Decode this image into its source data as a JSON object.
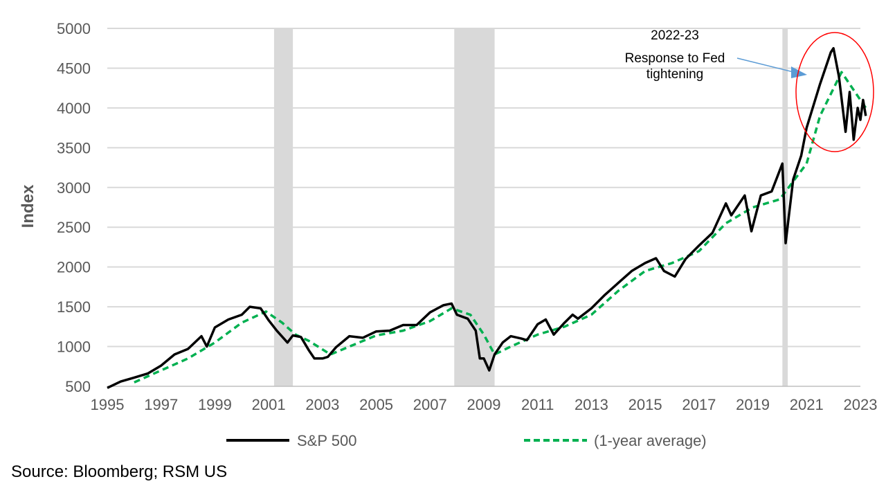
{
  "chart_data": {
    "type": "line",
    "title": "",
    "xlabel": "",
    "ylabel": "Index",
    "xlim": [
      1995,
      2023
    ],
    "ylim": [
      500,
      5000
    ],
    "x_ticks": [
      1995,
      1997,
      1999,
      2001,
      2003,
      2005,
      2007,
      2009,
      2011,
      2013,
      2015,
      2017,
      2019,
      2021,
      2023
    ],
    "y_ticks": [
      500,
      1000,
      1500,
      2000,
      2500,
      3000,
      3500,
      4000,
      4500,
      5000
    ],
    "grid": "horizontal",
    "legend": "bottom",
    "recession_shading": [
      [
        2001.2,
        2001.9
      ],
      [
        2007.9,
        2009.4
      ],
      [
        2020.1,
        2020.3
      ]
    ],
    "series": [
      {
        "name": "S&P 500",
        "color": "#000000",
        "style": "solid",
        "points": [
          [
            1995.0,
            480
          ],
          [
            1995.5,
            560
          ],
          [
            1996.0,
            610
          ],
          [
            1996.5,
            660
          ],
          [
            1997.0,
            760
          ],
          [
            1997.5,
            900
          ],
          [
            1998.0,
            970
          ],
          [
            1998.5,
            1130
          ],
          [
            1998.7,
            1000
          ],
          [
            1999.0,
            1240
          ],
          [
            1999.5,
            1340
          ],
          [
            2000.0,
            1400
          ],
          [
            2000.3,
            1500
          ],
          [
            2000.7,
            1480
          ],
          [
            2000.9,
            1380
          ],
          [
            2001.0,
            1330
          ],
          [
            2001.3,
            1200
          ],
          [
            2001.7,
            1050
          ],
          [
            2001.9,
            1140
          ],
          [
            2002.2,
            1120
          ],
          [
            2002.5,
            950
          ],
          [
            2002.7,
            850
          ],
          [
            2003.0,
            850
          ],
          [
            2003.2,
            870
          ],
          [
            2003.5,
            990
          ],
          [
            2004.0,
            1130
          ],
          [
            2004.5,
            1110
          ],
          [
            2005.0,
            1190
          ],
          [
            2005.5,
            1200
          ],
          [
            2006.0,
            1270
          ],
          [
            2006.5,
            1270
          ],
          [
            2007.0,
            1430
          ],
          [
            2007.5,
            1520
          ],
          [
            2007.8,
            1540
          ],
          [
            2008.0,
            1400
          ],
          [
            2008.4,
            1350
          ],
          [
            2008.7,
            1200
          ],
          [
            2008.85,
            850
          ],
          [
            2009.0,
            850
          ],
          [
            2009.2,
            700
          ],
          [
            2009.4,
            900
          ],
          [
            2009.7,
            1050
          ],
          [
            2010.0,
            1130
          ],
          [
            2010.4,
            1100
          ],
          [
            2010.6,
            1080
          ],
          [
            2011.0,
            1280
          ],
          [
            2011.3,
            1340
          ],
          [
            2011.6,
            1150
          ],
          [
            2012.0,
            1300
          ],
          [
            2012.3,
            1400
          ],
          [
            2012.5,
            1350
          ],
          [
            2013.0,
            1480
          ],
          [
            2013.5,
            1650
          ],
          [
            2014.0,
            1800
          ],
          [
            2014.5,
            1950
          ],
          [
            2015.0,
            2050
          ],
          [
            2015.4,
            2110
          ],
          [
            2015.7,
            1950
          ],
          [
            2016.1,
            1880
          ],
          [
            2016.5,
            2100
          ],
          [
            2017.0,
            2270
          ],
          [
            2017.5,
            2430
          ],
          [
            2018.0,
            2800
          ],
          [
            2018.2,
            2650
          ],
          [
            2018.7,
            2900
          ],
          [
            2018.95,
            2450
          ],
          [
            2019.3,
            2900
          ],
          [
            2019.7,
            2950
          ],
          [
            2020.1,
            3300
          ],
          [
            2020.22,
            2300
          ],
          [
            2020.5,
            3100
          ],
          [
            2020.8,
            3400
          ],
          [
            2021.0,
            3750
          ],
          [
            2021.5,
            4300
          ],
          [
            2021.9,
            4700
          ],
          [
            2022.0,
            4750
          ],
          [
            2022.2,
            4400
          ],
          [
            2022.45,
            3700
          ],
          [
            2022.6,
            4200
          ],
          [
            2022.75,
            3600
          ],
          [
            2022.9,
            4000
          ],
          [
            2023.0,
            3850
          ],
          [
            2023.1,
            4100
          ],
          [
            2023.2,
            3900
          ]
        ]
      },
      {
        "name": "(1-year average)",
        "color": "#00B050",
        "style": "dashed",
        "points": [
          [
            1996.0,
            550
          ],
          [
            1997.0,
            700
          ],
          [
            1998.0,
            850
          ],
          [
            1999.0,
            1050
          ],
          [
            2000.0,
            1300
          ],
          [
            2000.9,
            1440
          ],
          [
            2001.5,
            1300
          ],
          [
            2002.0,
            1150
          ],
          [
            2002.5,
            1070
          ],
          [
            2003.3,
            900
          ],
          [
            2004.0,
            1000
          ],
          [
            2005.0,
            1140
          ],
          [
            2006.0,
            1200
          ],
          [
            2007.0,
            1320
          ],
          [
            2007.8,
            1480
          ],
          [
            2008.5,
            1400
          ],
          [
            2009.0,
            1150
          ],
          [
            2009.4,
            900
          ],
          [
            2010.0,
            1000
          ],
          [
            2011.0,
            1150
          ],
          [
            2012.0,
            1250
          ],
          [
            2013.0,
            1400
          ],
          [
            2014.0,
            1700
          ],
          [
            2015.0,
            1950
          ],
          [
            2016.0,
            2050
          ],
          [
            2017.0,
            2200
          ],
          [
            2018.0,
            2550
          ],
          [
            2019.0,
            2750
          ],
          [
            2020.0,
            2850
          ],
          [
            2021.0,
            3300
          ],
          [
            2021.5,
            3900
          ],
          [
            2022.3,
            4450
          ],
          [
            2022.8,
            4200
          ],
          [
            2023.2,
            4000
          ]
        ]
      }
    ],
    "annotation": {
      "lines": [
        "2022-23",
        "Response to Fed",
        "tightening"
      ],
      "arrow_color": "#5B9BD5",
      "circle_color": "#FF0000"
    }
  },
  "source": "Source: Bloomberg; RSM US"
}
